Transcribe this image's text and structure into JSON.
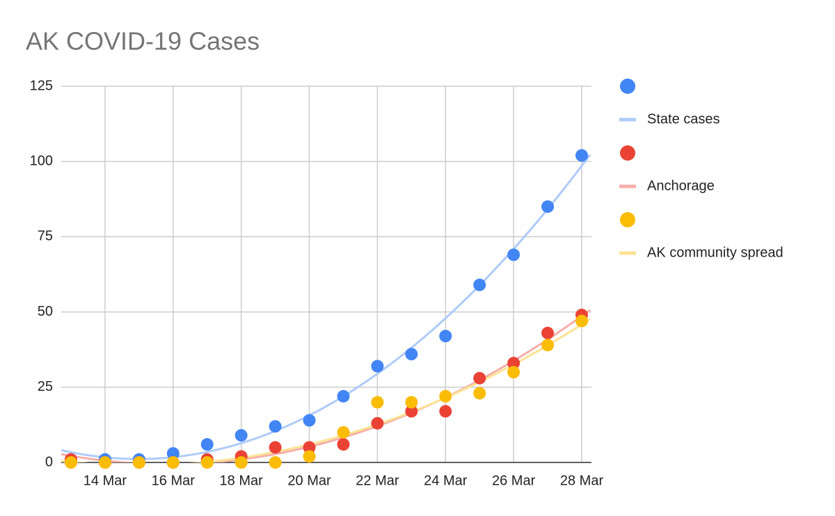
{
  "chart_data": {
    "type": "scatter",
    "title": "AK COVID-19 Cases",
    "categories": [
      null,
      "14 Mar",
      null,
      "16 Mar",
      null,
      "18 Mar",
      null,
      "20 Mar",
      null,
      "22 Mar",
      null,
      "24 Mar",
      null,
      "26 Mar",
      null,
      "28 Mar"
    ],
    "series": [
      {
        "name": "State cases",
        "color": "#4285f4",
        "trendline_color": "#aecbfa",
        "values": [
          1,
          1,
          1,
          3,
          6,
          9,
          12,
          14,
          22,
          32,
          36,
          42,
          59,
          69,
          85,
          102
        ]
      },
      {
        "name": "Anchorage",
        "color": "#ea4335",
        "trendline_color": "#f6aea9",
        "values": [
          1,
          0,
          0,
          0,
          1,
          2,
          5,
          5,
          6,
          13,
          17,
          17,
          28,
          33,
          43,
          49
        ]
      },
      {
        "name": "AK community spread",
        "color": "#fbbc04",
        "trendline_color": "#fde293",
        "values": [
          0,
          0,
          0,
          0,
          0,
          0,
          0,
          2,
          10,
          20,
          20,
          22,
          23,
          30,
          39,
          47
        ]
      }
    ],
    "trendline": "polynomial",
    "ylim": [
      0,
      125
    ],
    "yticks": [
      0,
      25,
      50,
      75,
      100,
      125
    ],
    "grid": true,
    "legend": "right"
  }
}
